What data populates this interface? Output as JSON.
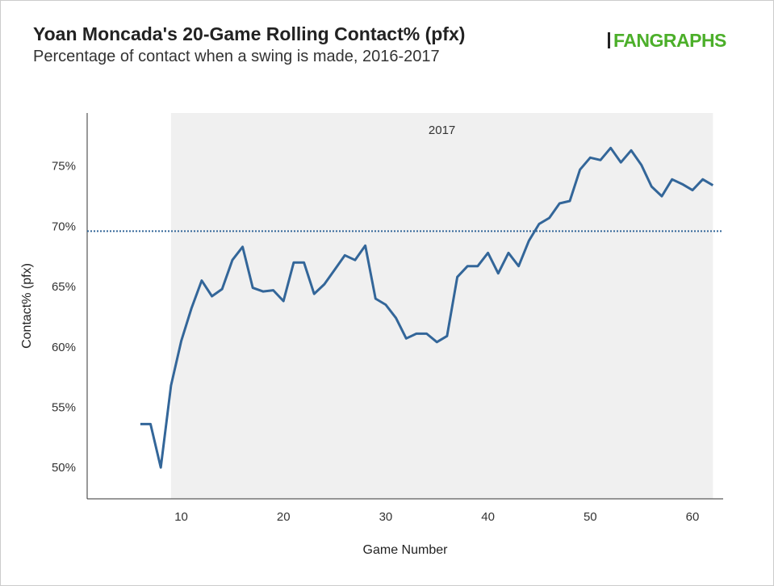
{
  "header": {
    "title": "Yoan Moncada's 20-Game Rolling Contact% (pfx)",
    "subtitle": "Percentage of contact when a swing is made, 2016-2017",
    "logo": "FANGRAPHS"
  },
  "colors": {
    "line": "#336699",
    "shade": "#f0f0f0",
    "logo": "#4caf2a"
  },
  "chart_data": {
    "type": "line",
    "title": "Yoan Moncada's 20-Game Rolling Contact% (pfx)",
    "xlabel": "Game Number",
    "ylabel": "Contact% (pfx)",
    "xlim": [
      0.8,
      63
    ],
    "ylim": [
      47.4,
      79.4
    ],
    "xticks": [
      10,
      20,
      30,
      40,
      50,
      60
    ],
    "yticks": [
      {
        "v": 50,
        "label": "50%"
      },
      {
        "v": 55,
        "label": "55%"
      },
      {
        "v": 60,
        "label": "60%"
      },
      {
        "v": 65,
        "label": "65%"
      },
      {
        "v": 70,
        "label": "70%"
      },
      {
        "v": 75,
        "label": "75%"
      }
    ],
    "season_band": {
      "label": "2017",
      "from": 9,
      "to": 62
    },
    "reference_line": {
      "value": 69.6,
      "style": "dotted"
    },
    "x": [
      6,
      7,
      8,
      9,
      10,
      11,
      12,
      13,
      14,
      15,
      16,
      17,
      18,
      19,
      20,
      21,
      22,
      23,
      24,
      25,
      26,
      27,
      28,
      29,
      30,
      31,
      32,
      33,
      34,
      35,
      36,
      37,
      38,
      39,
      40,
      41,
      42,
      43,
      44,
      45,
      46,
      47,
      48,
      49,
      50,
      51,
      52,
      53,
      54,
      55,
      56,
      57,
      58,
      59,
      60,
      61,
      62
    ],
    "y": [
      53.6,
      53.6,
      50.0,
      56.8,
      60.5,
      63.2,
      65.5,
      64.2,
      64.8,
      67.2,
      68.3,
      64.9,
      64.6,
      64.7,
      63.8,
      67.0,
      67.0,
      64.4,
      65.2,
      66.4,
      67.6,
      67.2,
      68.4,
      64.0,
      63.5,
      62.4,
      60.7,
      61.1,
      61.1,
      60.4,
      60.9,
      65.8,
      66.7,
      66.7,
      67.8,
      66.1,
      67.8,
      66.7,
      68.8,
      70.2,
      70.7,
      71.9,
      72.1,
      74.7,
      75.7,
      75.5,
      76.5,
      75.3,
      76.3,
      75.1,
      73.3,
      72.5,
      73.9,
      73.5,
      73.0,
      73.9,
      73.4
    ]
  }
}
